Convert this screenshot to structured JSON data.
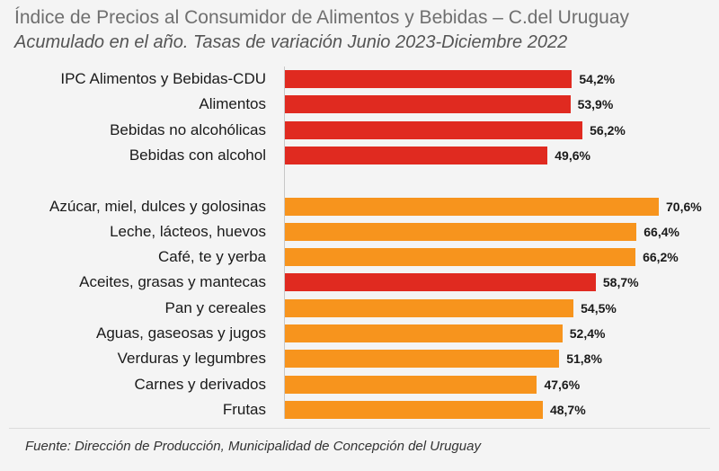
{
  "chart_data": {
    "type": "bar",
    "orientation": "horizontal",
    "title": "Índice de Precios al Consumidor de Alimentos y Bebidas – C.del Uruguay",
    "subtitle": "Acumulado en el año. Tasas de variación Junio 2023-Diciembre 2022",
    "source": "Fuente: Dirección de Producción, Municipalidad de Concepción del Uruguay",
    "xlim": [
      0,
      75
    ],
    "grid": false,
    "legend": "none",
    "colors": {
      "red": "#e02a20",
      "orange": "#f7941d"
    },
    "groups": [
      {
        "name": "",
        "items": [
          {
            "category": "IPC Alimentos y Bebidas-CDU",
            "value": 54.2,
            "label": "54,2%",
            "color": "red"
          },
          {
            "category": "Alimentos",
            "value": 53.9,
            "label": "53,9%",
            "color": "red"
          },
          {
            "category": "Bebidas no alcohólicas",
            "value": 56.2,
            "label": "56,2%",
            "color": "red"
          },
          {
            "category": "Bebidas con alcohol",
            "value": 49.6,
            "label": "49,6%",
            "color": "red"
          }
        ]
      },
      {
        "name": "",
        "items": [
          {
            "category": "Azúcar, miel, dulces y golosinas",
            "value": 70.6,
            "label": "70,6%",
            "color": "orange"
          },
          {
            "category": "Leche, lácteos, huevos",
            "value": 66.4,
            "label": "66,4%",
            "color": "orange"
          },
          {
            "category": "Café, te y yerba",
            "value": 66.2,
            "label": "66,2%",
            "color": "orange"
          },
          {
            "category": "Aceites, grasas y mantecas",
            "value": 58.7,
            "label": "58,7%",
            "color": "red"
          },
          {
            "category": "Pan y cereales",
            "value": 54.5,
            "label": "54,5%",
            "color": "orange"
          },
          {
            "category": "Aguas, gaseosas y jugos",
            "value": 52.4,
            "label": "52,4%",
            "color": "orange"
          },
          {
            "category": "Verduras y legumbres",
            "value": 51.8,
            "label": "51,8%",
            "color": "orange"
          },
          {
            "category": "Carnes y derivados",
            "value": 47.6,
            "label": "47,6%",
            "color": "orange"
          },
          {
            "category": "Frutas",
            "value": 48.7,
            "label": "48,7%",
            "color": "orange"
          }
        ]
      }
    ]
  }
}
